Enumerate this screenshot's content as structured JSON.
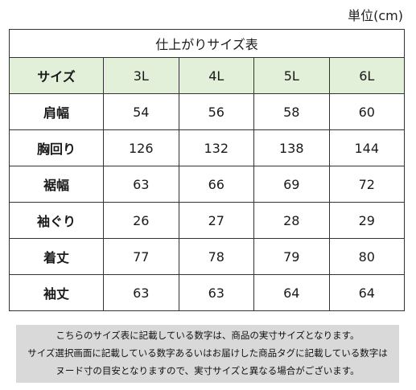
{
  "unit_label": "単位(cm)",
  "table": {
    "title": "仕上がりサイズ表",
    "header_label": "サイズ",
    "sizes": [
      "3L",
      "4L",
      "5L",
      "6L"
    ],
    "rows": [
      {
        "label": "肩幅",
        "values": [
          "54",
          "56",
          "58",
          "60"
        ]
      },
      {
        "label": "胸回り",
        "values": [
          "126",
          "132",
          "138",
          "144"
        ]
      },
      {
        "label": "裾幅",
        "values": [
          "63",
          "66",
          "69",
          "72"
        ]
      },
      {
        "label": "袖ぐり",
        "values": [
          "26",
          "27",
          "28",
          "29"
        ]
      },
      {
        "label": "着丈",
        "values": [
          "77",
          "78",
          "79",
          "80"
        ]
      },
      {
        "label": "袖丈",
        "values": [
          "63",
          "63",
          "64",
          "64"
        ]
      }
    ]
  },
  "note_lines": [
    "こちらのサイズ表に記載している数字は、商品の実寸サイズとなります。",
    "サイズ選択画面に記載している数字あるいはお届けした商品タグに記載している数字は",
    "ヌード寸の目安となりますので、実寸サイズと異なる場合がございます。"
  ],
  "colors": {
    "header_bg": "#e2efd9",
    "note_bg": "#d9d9d9",
    "border": "#333333"
  }
}
